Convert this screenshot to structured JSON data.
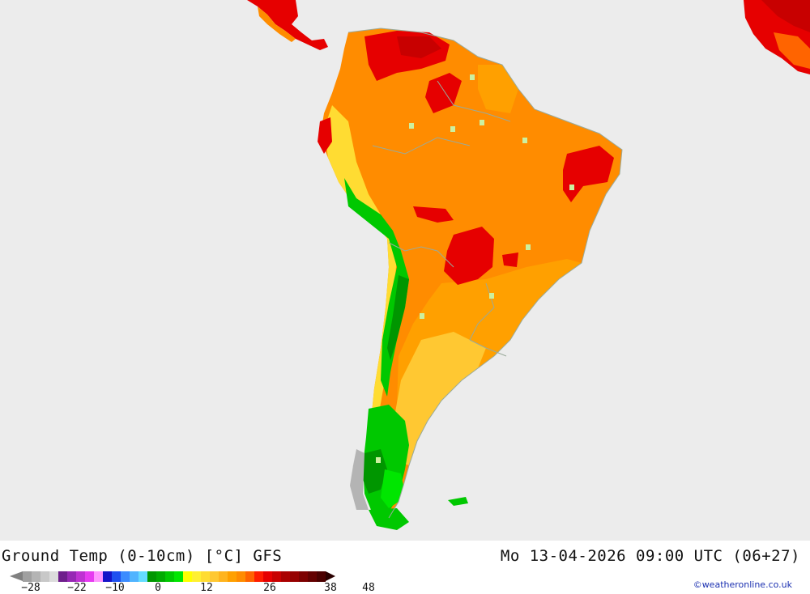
{
  "map": {
    "title": "Ground Temp (0-10cm) [°C] GFS",
    "valid_time": "Mo 13-04-2026 09:00 UTC (06+27)",
    "credit": "©weatheronline.co.uk",
    "region": "South America",
    "ocean_color": "#ececec"
  },
  "legend": {
    "tick_labels": [
      "-28",
      "-22",
      "-10",
      "0",
      "12",
      "26",
      "38",
      "48"
    ],
    "colors": [
      "#a0a0a0",
      "#b4b4b4",
      "#c8c8c8",
      "#dcdcdc",
      "#6e1e8c",
      "#9628b4",
      "#be32d2",
      "#e63cf0",
      "#ff96ff",
      "#1414c8",
      "#1e50f0",
      "#3c8cff",
      "#50b4ff",
      "#64dcff",
      "#009600",
      "#00aa00",
      "#00c800",
      "#00e600",
      "#ffff00",
      "#fff032",
      "#ffdc32",
      "#ffc832",
      "#ffb41e",
      "#ffa000",
      "#ff8c00",
      "#ff6400",
      "#ff1e00",
      "#e60000",
      "#c80000",
      "#aa0000",
      "#960000",
      "#7d0000",
      "#640000",
      "#4b0000"
    ]
  }
}
